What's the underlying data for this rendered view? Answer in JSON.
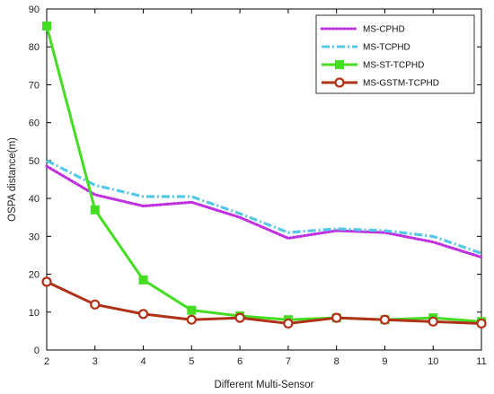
{
  "chart_data": {
    "type": "line",
    "xlabel": "Different Multi-Sensor",
    "ylabel": "OSPA distance(m)",
    "x": [
      2,
      3,
      4,
      5,
      6,
      7,
      8,
      9,
      10,
      11
    ],
    "xlim": [
      2,
      11
    ],
    "ylim": [
      0,
      90
    ],
    "yticks": [
      0,
      10,
      20,
      30,
      40,
      50,
      60,
      70,
      80,
      90
    ],
    "grid": false,
    "legend_position": "top-right",
    "series": [
      {
        "name": "MS-CPHD",
        "values": [
          48.5,
          41,
          38,
          39,
          35,
          29.5,
          31.5,
          31,
          28.5,
          24.5
        ],
        "color": "#c030e0",
        "style": "dotted",
        "marker": "none"
      },
      {
        "name": "MS-TCPHD",
        "values": [
          50,
          43.5,
          40.5,
          40.5,
          36,
          31,
          32,
          31.5,
          30,
          25.5
        ],
        "color": "#55c8e8",
        "style": "dashdot",
        "marker": "none"
      },
      {
        "name": "MS-ST-TCPHD",
        "values": [
          85.5,
          37,
          18.5,
          10.5,
          9,
          8,
          8.5,
          8,
          8.5,
          7.5
        ],
        "color": "#44dd22",
        "style": "solid",
        "marker": "square"
      },
      {
        "name": "MS-GSTM-TCPHD",
        "values": [
          18,
          12,
          9.5,
          8,
          8.5,
          7,
          8.5,
          8,
          7.5,
          7
        ],
        "color": "#b03018",
        "style": "solid",
        "marker": "circle"
      }
    ]
  }
}
